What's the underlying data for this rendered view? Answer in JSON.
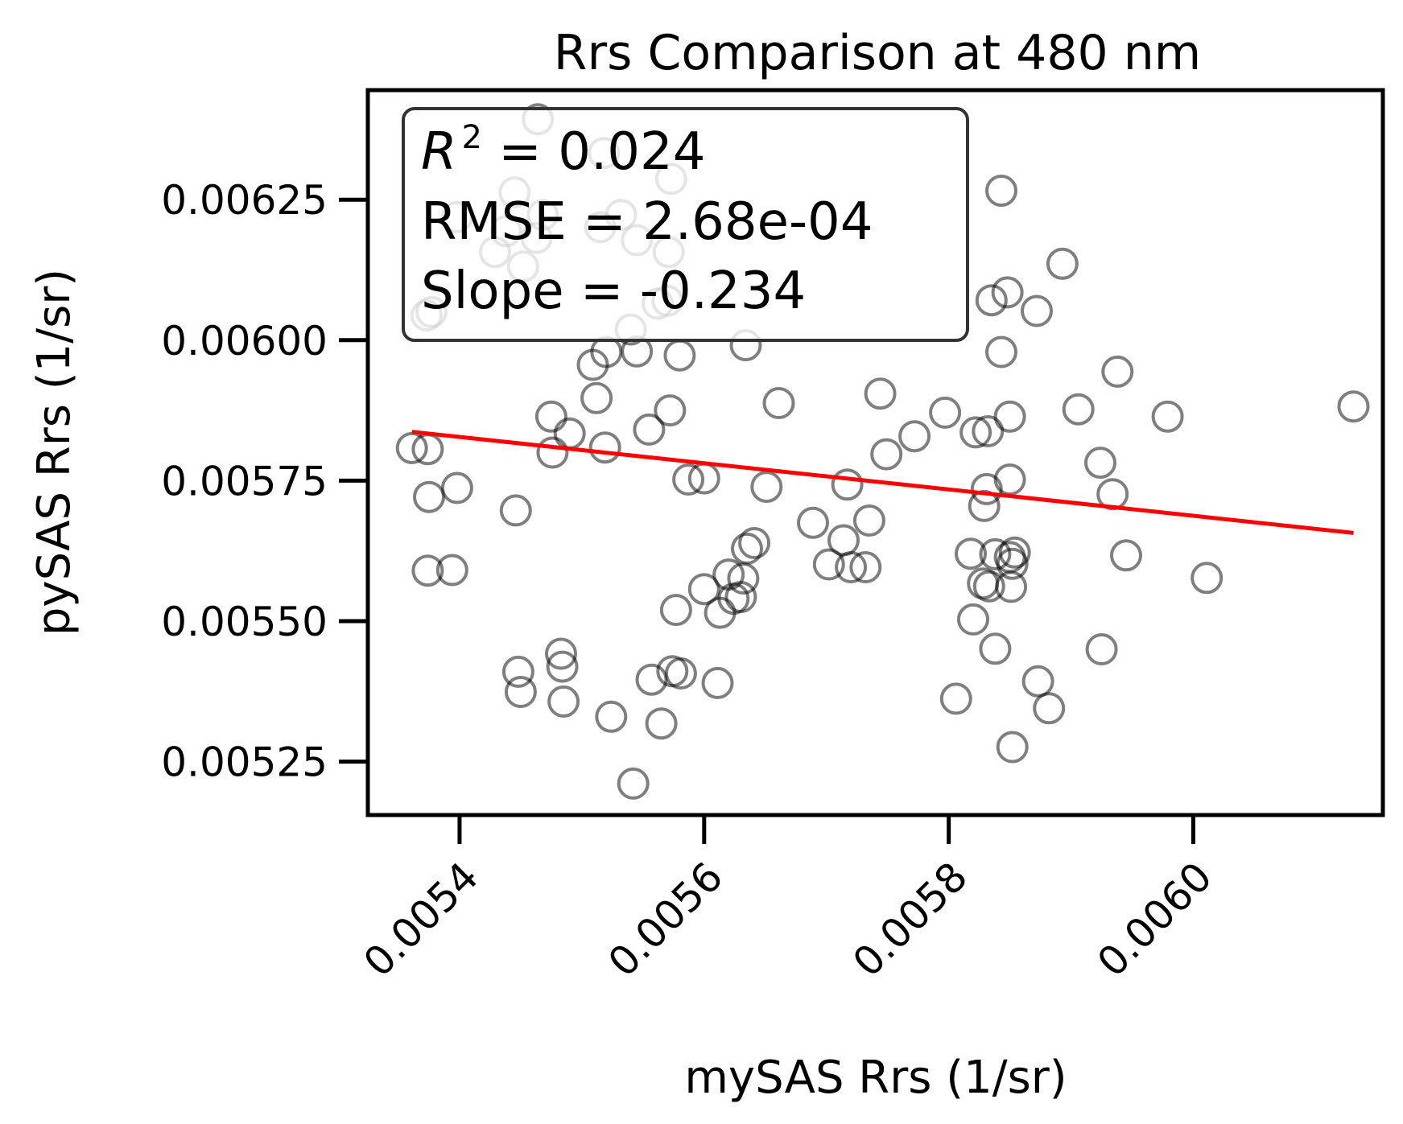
{
  "chart_data": {
    "type": "scatter",
    "title": "Rrs Comparison at 480 nm",
    "xlabel": "mySAS Rrs (1/sr)",
    "ylabel": "pySAS Rrs (1/sr)",
    "xlim": [
      0.005325,
      0.006155
    ],
    "ylim": [
      0.005155,
      0.006445
    ],
    "x_ticks": [
      0.0054,
      0.0056,
      0.0058,
      0.006
    ],
    "x_tick_labels": [
      "0.0054",
      "0.0056",
      "0.0058",
      "0.0060"
    ],
    "y_ticks": [
      0.00525,
      0.0055,
      0.00575,
      0.006,
      0.00625
    ],
    "y_tick_labels": [
      "0.00525",
      "0.00550",
      "0.00575",
      "0.00600",
      "0.00625"
    ],
    "grid": false,
    "stats": {
      "r2_symbol": "R",
      "r2_power": "2",
      "r2_value": " = 0.024",
      "rmse": "RMSE = 2.68e-04",
      "slope": "Slope = -0.234"
    },
    "points": [
      [
        0.005361,
        0.005808
      ],
      [
        0.005374,
        0.005806
      ],
      [
        0.005375,
        0.005721
      ],
      [
        0.005374,
        0.00559
      ],
      [
        0.005373,
        0.006044
      ],
      [
        0.005377,
        0.00605
      ],
      [
        0.005394,
        0.005591
      ],
      [
        0.005398,
        0.005737
      ],
      [
        0.005398,
        0.006219
      ],
      [
        0.005429,
        0.006157
      ],
      [
        0.005438,
        0.006194
      ],
      [
        0.005445,
        0.006263
      ],
      [
        0.005446,
        0.005697
      ],
      [
        0.005448,
        0.00541
      ],
      [
        0.00545,
        0.005374
      ],
      [
        0.005452,
        0.006131
      ],
      [
        0.005463,
        0.006182
      ],
      [
        0.005464,
        0.006393
      ],
      [
        0.005468,
        0.006223
      ],
      [
        0.005475,
        0.005864
      ],
      [
        0.005476,
        0.0058
      ],
      [
        0.005483,
        0.005442
      ],
      [
        0.005484,
        0.005419
      ],
      [
        0.005485,
        0.005357
      ],
      [
        0.00549,
        0.005834
      ],
      [
        0.005509,
        0.005956
      ],
      [
        0.005512,
        0.005897
      ],
      [
        0.005515,
        0.006201
      ],
      [
        0.005518,
        0.006333
      ],
      [
        0.005519,
        0.005809
      ],
      [
        0.00552,
        0.005979
      ],
      [
        0.005524,
        0.00533
      ],
      [
        0.005532,
        0.006223
      ],
      [
        0.00554,
        0.006019
      ],
      [
        0.005542,
        0.005211
      ],
      [
        0.005545,
        0.006178
      ],
      [
        0.005545,
        0.00598
      ],
      [
        0.005555,
        0.005841
      ],
      [
        0.005557,
        0.005396
      ],
      [
        0.005562,
        0.006065
      ],
      [
        0.005565,
        0.005318
      ],
      [
        0.00557,
        0.00607
      ],
      [
        0.005571,
        0.006157
      ],
      [
        0.005572,
        0.005875
      ],
      [
        0.005573,
        0.006287
      ],
      [
        0.005574,
        0.005411
      ],
      [
        0.005577,
        0.00552
      ],
      [
        0.00558,
        0.005973
      ],
      [
        0.005581,
        0.005407
      ],
      [
        0.005587,
        0.005752
      ],
      [
        0.0056,
        0.005754
      ],
      [
        0.0056,
        0.005557
      ],
      [
        0.005611,
        0.00539
      ],
      [
        0.005613,
        0.005515
      ],
      [
        0.00562,
        0.005583
      ],
      [
        0.005624,
        0.00554
      ],
      [
        0.00563,
        0.005543
      ],
      [
        0.005632,
        0.005576
      ],
      [
        0.005634,
        0.005991
      ],
      [
        0.005635,
        0.005629
      ],
      [
        0.005641,
        0.005639
      ],
      [
        0.005651,
        0.005739
      ],
      [
        0.005661,
        0.005888
      ],
      [
        0.005689,
        0.005675
      ],
      [
        0.005702,
        0.005601
      ],
      [
        0.005714,
        0.005644
      ],
      [
        0.005717,
        0.005743
      ],
      [
        0.00572,
        0.005596
      ],
      [
        0.005732,
        0.005596
      ],
      [
        0.005735,
        0.005679
      ],
      [
        0.005744,
        0.005905
      ],
      [
        0.005749,
        0.005797
      ],
      [
        0.005772,
        0.005829
      ],
      [
        0.005797,
        0.005871
      ],
      [
        0.005806,
        0.005362
      ],
      [
        0.005818,
        0.00562
      ],
      [
        0.00582,
        0.005503
      ],
      [
        0.005822,
        0.005836
      ],
      [
        0.005828,
        0.005567
      ],
      [
        0.005829,
        0.005705
      ],
      [
        0.005831,
        0.005735
      ],
      [
        0.005832,
        0.005838
      ],
      [
        0.005833,
        0.005562
      ],
      [
        0.005835,
        0.006071
      ],
      [
        0.005838,
        0.005619
      ],
      [
        0.005838,
        0.005451
      ],
      [
        0.005843,
        0.005979
      ],
      [
        0.005843,
        0.006266
      ],
      [
        0.005848,
        0.006085
      ],
      [
        0.00585,
        0.005752
      ],
      [
        0.00585,
        0.005614
      ],
      [
        0.00585,
        0.005864
      ],
      [
        0.005851,
        0.005561
      ],
      [
        0.005852,
        0.005602
      ],
      [
        0.005852,
        0.005276
      ],
      [
        0.005854,
        0.005622
      ],
      [
        0.005872,
        0.006052
      ],
      [
        0.005873,
        0.005393
      ],
      [
        0.005882,
        0.005345
      ],
      [
        0.005893,
        0.006136
      ],
      [
        0.005906,
        0.005877
      ],
      [
        0.005924,
        0.005782
      ],
      [
        0.005925,
        0.00545
      ],
      [
        0.005934,
        0.005726
      ],
      [
        0.005938,
        0.005944
      ],
      [
        0.005945,
        0.005617
      ],
      [
        0.005979,
        0.005864
      ],
      [
        0.006011,
        0.005577
      ],
      [
        0.006131,
        0.005882
      ]
    ],
    "trend_line": {
      "x": [
        0.005361,
        0.006131
      ],
      "y": [
        0.005837,
        0.005657
      ]
    },
    "marker_color": "#000000",
    "marker_alpha": 0.5,
    "trend_color": "#ff0000"
  }
}
